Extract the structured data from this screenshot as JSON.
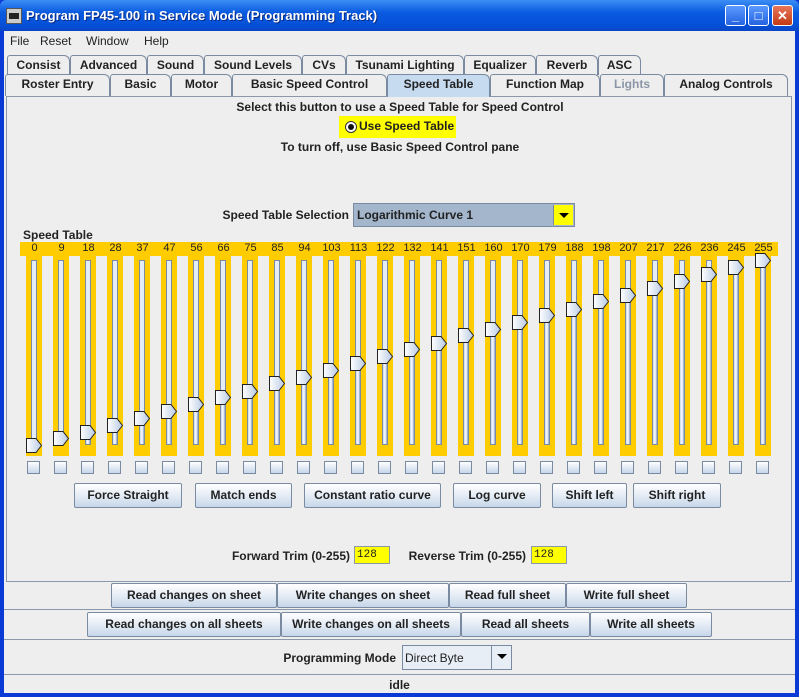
{
  "window": {
    "title": "Program FP45-100 in Service Mode (Programming Track)",
    "controls": [
      "_",
      "□",
      "✕"
    ]
  },
  "menu": [
    "File",
    "Reset",
    "Window",
    "Help"
  ],
  "tabs_row1": [
    "Consist",
    "Advanced",
    "Sound",
    "Sound Levels",
    "CVs",
    "Tsunami Lighting",
    "Equalizer",
    "Reverb",
    "ASC"
  ],
  "tabs_row2": [
    {
      "label": "Roster Entry"
    },
    {
      "label": "Basic"
    },
    {
      "label": "Motor"
    },
    {
      "label": "Basic Speed Control"
    },
    {
      "label": "Speed Table",
      "selected": true
    },
    {
      "label": "Function Map"
    },
    {
      "label": "Lights",
      "disabled": true
    },
    {
      "label": "Analog Controls"
    }
  ],
  "speed_table": {
    "instruction": "Select this button to use a Speed Table for Speed Control",
    "radio_label": "Use Speed Table",
    "radio_checked": true,
    "turn_off_note": "To turn off, use Basic Speed Control pane",
    "selection_label": "Speed Table Selection",
    "selection_value": "Logarithmic Curve 1",
    "table_label": "Speed Table",
    "values": [
      0,
      9,
      18,
      28,
      37,
      47,
      56,
      66,
      75,
      85,
      94,
      103,
      113,
      122,
      132,
      141,
      151,
      160,
      170,
      179,
      188,
      198,
      207,
      217,
      226,
      236,
      245,
      255
    ],
    "max": 255,
    "actions": [
      "Force Straight",
      "Match ends",
      "Constant ratio curve",
      "Log curve",
      "Shift left",
      "Shift right"
    ],
    "forward_trim_label": "Forward Trim (0-255)",
    "forward_trim": "128",
    "reverse_trim_label": "Reverse Trim (0-255)",
    "reverse_trim": "128",
    "highlight_color": "#ffff00",
    "slider_color": "#ffcc00"
  },
  "sheet_buttons": [
    "Read changes on sheet",
    "Write changes on sheet",
    "Read full sheet",
    "Write full sheet"
  ],
  "all_buttons": [
    "Read changes on all sheets",
    "Write changes on all sheets",
    "Read all sheets",
    "Write all sheets"
  ],
  "programming_mode": {
    "label": "Programming Mode",
    "value": "Direct Byte"
  },
  "status": "idle"
}
